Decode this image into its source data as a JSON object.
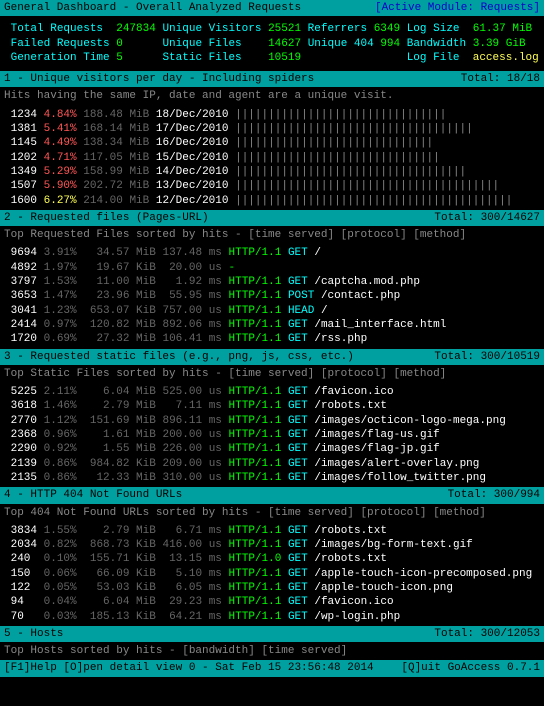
{
  "header": {
    "title": " General Dashboard - Overall Analyzed Requests",
    "module": "[Active Module: Requests]"
  },
  "stats": {
    "total_requests_label": "Total Requests  ",
    "total_requests": "247834",
    "unique_visitors_label": " Unique Visitors ",
    "unique_visitors": "25521",
    "referrers_label": " Referrers ",
    "referrers": "6349",
    "log_size_label": " Log Size  ",
    "log_size": "61.37 MiB",
    "failed_requests_label": "Failed Requests ",
    "failed_requests": "0",
    "unique_files_label": "      Unique Files    ",
    "unique_files": "14627",
    "unique_404_label": " Unique 404 ",
    "unique_404": "994",
    "bandwidth_label": " Bandwidth ",
    "bandwidth": "3.39 GiB",
    "gen_time_label": "Generation Time ",
    "gen_time": "5",
    "static_files_label": "      Static Files    ",
    "static_files": "10519",
    "log_file_label": "                Log File  ",
    "log_file": "access.log"
  },
  "section1": {
    "title": " 1 - Unique visitors per day - Including spiders",
    "total": "Total: 18/18",
    "subtitle": " Hits having the same IP, date and agent are a unique visit.",
    "rows": [
      {
        "hits": "1234",
        "pct": "4.84%",
        "size": "188.48 MiB",
        "date": "18/Dec/2010",
        "bar": "||||||||||||||||||||||||||||||||"
      },
      {
        "hits": "1381",
        "pct": "5.41%",
        "size": "168.14 MiB",
        "date": "17/Dec/2010",
        "bar": "||||||||||||||||||||||||||||||||||||"
      },
      {
        "hits": "1145",
        "pct": "4.49%",
        "size": "138.34 MiB",
        "date": "16/Dec/2010",
        "bar": "||||||||||||||||||||||||||||||"
      },
      {
        "hits": "1202",
        "pct": "4.71%",
        "size": "117.05 MiB",
        "date": "15/Dec/2010",
        "bar": "|||||||||||||||||||||||||||||||"
      },
      {
        "hits": "1349",
        "pct": "5.29%",
        "size": "158.99 MiB",
        "date": "14/Dec/2010",
        "bar": "|||||||||||||||||||||||||||||||||||"
      },
      {
        "hits": "1507",
        "pct": "5.90%",
        "size": "202.72 MiB",
        "date": "13/Dec/2010",
        "bar": "||||||||||||||||||||||||||||||||||||||||"
      },
      {
        "hits": "1600",
        "pct": "6.27%",
        "size": "214.00 MiB",
        "date": "12/Dec/2010",
        "bar": "||||||||||||||||||||||||||||||||||||||||||",
        "yellow": true
      }
    ]
  },
  "section2": {
    "title": " 2 - Requested files (Pages-URL)",
    "total": "Total: 300/14627",
    "subtitle": " Top Requested Files sorted by hits - [time served] [protocol] [method]",
    "rows": [
      {
        "hits": "9694",
        "pct": "3.91%",
        "size": "  34.57 MiB",
        "time": "137.48 ms",
        "proto": "HTTP/1.1",
        "method": "GET",
        "path": "/"
      },
      {
        "hits": "4892",
        "pct": "1.97%",
        "size": "  19.67 KiB",
        "time": " 20.00 us",
        "proto": "-",
        "method": "",
        "path": ""
      },
      {
        "hits": "3797",
        "pct": "1.53%",
        "size": "  11.00 MiB",
        "time": "  1.92 ms",
        "proto": "HTTP/1.1",
        "method": "GET",
        "path": "/captcha.mod.php"
      },
      {
        "hits": "3653",
        "pct": "1.47%",
        "size": "  23.96 MiB",
        "time": " 55.95 ms",
        "proto": "HTTP/1.1",
        "method": "POST",
        "path": "/contact.php"
      },
      {
        "hits": "3041",
        "pct": "1.23%",
        "size": " 653.07 KiB",
        "time": "757.00 us",
        "proto": "HTTP/1.1",
        "method": "HEAD",
        "path": "/"
      },
      {
        "hits": "2414",
        "pct": "0.97%",
        "size": " 120.82 MiB",
        "time": "892.06 ms",
        "proto": "HTTP/1.1",
        "method": "GET",
        "path": "/mail_interface.html"
      },
      {
        "hits": "1720",
        "pct": "0.69%",
        "size": "  27.32 MiB",
        "time": "106.41 ms",
        "proto": "HTTP/1.1",
        "method": "GET",
        "path": "/rss.php"
      }
    ]
  },
  "section3": {
    "title": " 3 - Requested static files (e.g., png, js, css, etc.)",
    "total": "Total: 300/10519",
    "subtitle": " Top Static Files sorted by hits - [time served] [protocol] [method]",
    "rows": [
      {
        "hits": "5225",
        "pct": "2.11%",
        "size": "   6.04 MiB",
        "time": "525.00 us",
        "proto": "HTTP/1.1",
        "method": "GET",
        "path": "/favicon.ico"
      },
      {
        "hits": "3618",
        "pct": "1.46%",
        "size": "   2.79 MiB",
        "time": "  7.11 ms",
        "proto": "HTTP/1.1",
        "method": "GET",
        "path": "/robots.txt"
      },
      {
        "hits": "2770",
        "pct": "1.12%",
        "size": " 151.69 MiB",
        "time": "896.11 ms",
        "proto": "HTTP/1.1",
        "method": "GET",
        "path": "/images/octicon-logo-mega.png"
      },
      {
        "hits": "2368",
        "pct": "0.96%",
        "size": "   1.61 MiB",
        "time": "200.00 us",
        "proto": "HTTP/1.1",
        "method": "GET",
        "path": "/images/flag-us.gif"
      },
      {
        "hits": "2290",
        "pct": "0.92%",
        "size": "   1.55 MiB",
        "time": "226.00 us",
        "proto": "HTTP/1.1",
        "method": "GET",
        "path": "/images/flag-jp.gif"
      },
      {
        "hits": "2139",
        "pct": "0.86%",
        "size": " 984.82 KiB",
        "time": "209.00 us",
        "proto": "HTTP/1.1",
        "method": "GET",
        "path": "/images/alert-overlay.png"
      },
      {
        "hits": "2135",
        "pct": "0.86%",
        "size": "  12.33 MiB",
        "time": "310.00 us",
        "proto": "HTTP/1.1",
        "method": "GET",
        "path": "/images/follow_twitter.png"
      }
    ]
  },
  "section4": {
    "title": " 4 - HTTP 404 Not Found URLs",
    "total": "Total: 300/994",
    "subtitle": " Top 404 Not Found URLs sorted by hits - [time served] [protocol] [method]",
    "rows": [
      {
        "hits": "3834",
        "pct": "1.55%",
        "size": "   2.79 MiB",
        "time": "  6.71 ms",
        "proto": "HTTP/1.1",
        "method": "GET",
        "path": "/robots.txt"
      },
      {
        "hits": "2034",
        "pct": "0.82%",
        "size": " 868.73 KiB",
        "time": "416.00 us",
        "proto": "HTTP/1.1",
        "method": "GET",
        "path": "/images/bg-form-text.gif"
      },
      {
        "hits": "240 ",
        "pct": "0.10%",
        "size": " 155.71 KiB",
        "time": " 13.15 ms",
        "proto": "HTTP/1.0",
        "method": "GET",
        "path": "/robots.txt"
      },
      {
        "hits": "150 ",
        "pct": "0.06%",
        "size": "  66.09 KiB",
        "time": "  5.10 ms",
        "proto": "HTTP/1.1",
        "method": "GET",
        "path": "/apple-touch-icon-precomposed.png"
      },
      {
        "hits": "122 ",
        "pct": "0.05%",
        "size": "  53.03 KiB",
        "time": "  6.05 ms",
        "proto": "HTTP/1.1",
        "method": "GET",
        "path": "/apple-touch-icon.png"
      },
      {
        "hits": "94  ",
        "pct": "0.04%",
        "size": "   6.04 MiB",
        "time": " 29.23 ms",
        "proto": "HTTP/1.1",
        "method": "GET",
        "path": "/favicon.ico"
      },
      {
        "hits": "70  ",
        "pct": "0.03%",
        "size": " 185.13 KiB",
        "time": " 64.21 ms",
        "proto": "HTTP/1.1",
        "method": "GET",
        "path": "/wp-login.php"
      }
    ]
  },
  "section5": {
    "title": " 5 - Hosts",
    "total": "Total: 300/12053",
    "subtitle": " Top Hosts sorted by hits - [bandwidth] [time served]"
  },
  "footer": {
    "left": " [F1]Help [O]pen detail view  0 - Sat Feb 15 23:56:48 2014",
    "right": "[Q]uit GoAccess 0.7.1 "
  }
}
